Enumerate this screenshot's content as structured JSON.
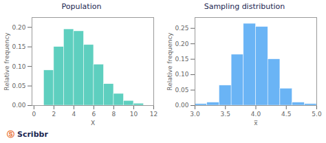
{
  "chart_data": [
    {
      "type": "histogram",
      "title": "Population",
      "x_label": "X",
      "y_label": "Relative frequency",
      "bins": [
        0,
        1,
        2,
        3,
        4,
        5,
        6,
        7,
        8,
        9,
        10,
        11
      ],
      "values": [
        0.0,
        0.09,
        0.15,
        0.195,
        0.19,
        0.155,
        0.105,
        0.055,
        0.03,
        0.012,
        0.005
      ],
      "color": "#5ecfbf",
      "xlim": [
        -0.2,
        12
      ],
      "xticks": [
        0,
        2,
        4,
        6,
        8,
        10,
        12
      ],
      "ylim": [
        0,
        0.225
      ],
      "yticks": [
        {
          "value": 0,
          "label": "0.00"
        },
        {
          "value": 0.05,
          "label": "0.05"
        },
        {
          "value": 0.1,
          "label": "0.10"
        },
        {
          "value": 0.15,
          "label": "0.15"
        },
        {
          "value": 0.2,
          "label": "0.20"
        }
      ],
      "grid": false,
      "annotations": [
        {
          "text": "Ⓢ",
          "color": "#e8692a"
        },
        {
          "text": "Scribbr",
          "color": "#1a2550"
        }
      ]
    },
    {
      "type": "histogram",
      "title": "Sampling distribution",
      "x_label": "x̅",
      "y_label": "Relative frequency",
      "bins": [
        3.0,
        3.2,
        3.4,
        3.6,
        3.8,
        4.0,
        4.2,
        4.4,
        4.6,
        4.8,
        5.0
      ],
      "values": [
        0.005,
        0.01,
        0.065,
        0.165,
        0.265,
        0.255,
        0.15,
        0.055,
        0.01,
        0.005
      ],
      "color": "#6ab4f5",
      "xlim": [
        3.0,
        5.0
      ],
      "xticks": [
        {
          "value": 3,
          "label": "3.0"
        },
        3.5,
        {
          "value": 4,
          "label": "4.0"
        },
        4.5,
        {
          "value": 5,
          "label": "5.0"
        }
      ],
      "ylim": [
        0,
        0.285
      ],
      "yticks": [
        {
          "value": 0,
          "label": "0.00"
        },
        {
          "value": 0.05,
          "label": "0.05"
        },
        {
          "value": 0.1,
          "label": "0.10"
        },
        {
          "value": 0.15,
          "label": "0.15"
        },
        {
          "value": 0.2,
          "label": "0.20"
        },
        {
          "value": 0.25,
          "label": "0.25"
        }
      ],
      "grid": false
    }
  ]
}
